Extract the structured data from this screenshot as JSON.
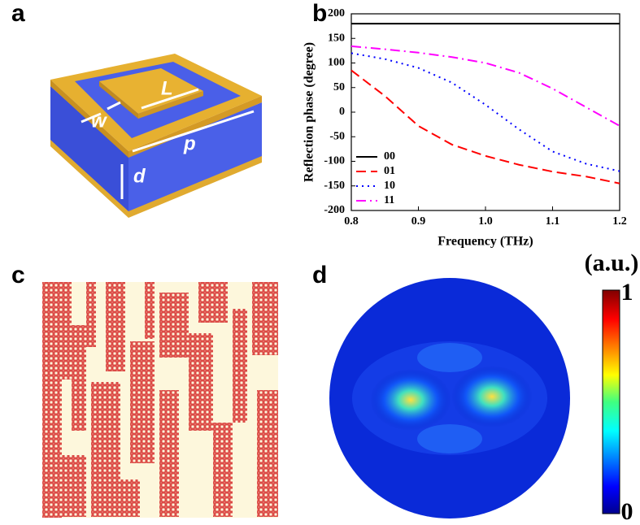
{
  "panels": {
    "a": {
      "label": "a",
      "symbols": [
        "w",
        "L",
        "p",
        "d"
      ]
    },
    "c": {
      "label": "c"
    },
    "d": {
      "label": "d",
      "colorbar": {
        "unit": "(a.u.)",
        "max": 1,
        "min": 0
      }
    }
  },
  "chart_data": {
    "type": "line",
    "panel_label": "b",
    "x_label": "Frequency (THz)",
    "y_label": "Reflection phase (degree)",
    "x": [
      0.8,
      0.85,
      0.9,
      0.95,
      1.0,
      1.05,
      1.1,
      1.15,
      1.2
    ],
    "series": [
      {
        "name": "00",
        "color": "#000000",
        "dash": "solid",
        "values": [
          180,
          180,
          180,
          180,
          180,
          180,
          180,
          180,
          180
        ]
      },
      {
        "name": "01",
        "color": "#ff0000",
        "dash": "dash",
        "values": [
          85,
          33,
          -28,
          -66,
          -89,
          -107,
          -121,
          -131,
          -145
        ]
      },
      {
        "name": "10",
        "color": "#0000ff",
        "dash": "dot",
        "values": [
          120,
          108,
          90,
          60,
          15,
          -35,
          -80,
          -105,
          -120
        ]
      },
      {
        "name": "11",
        "color": "#ff00ff",
        "dash": "dashdot",
        "values": [
          134,
          128,
          121,
          112,
          100,
          80,
          48,
          10,
          -28
        ]
      }
    ],
    "xlim": [
      0.8,
      1.2
    ],
    "xticks": [
      0.8,
      0.9,
      {
        "value": 1.0,
        "label": "1.0"
      },
      1.1,
      1.2
    ],
    "ylim": [
      -200,
      200
    ],
    "yticks": [
      200,
      150,
      100,
      50,
      0,
      -50,
      -100,
      -150,
      -200
    ],
    "legend": "lower-left"
  }
}
